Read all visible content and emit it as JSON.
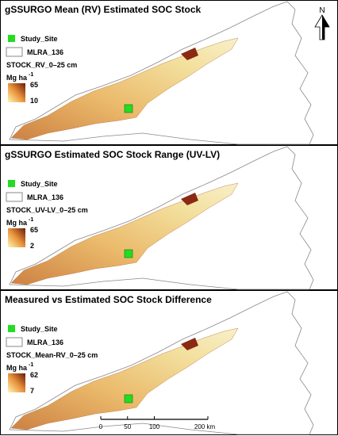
{
  "panels": [
    {
      "title": "gSSURGO Mean (RV) Estimated SOC Stock",
      "legend": {
        "site": "Study_Site",
        "boundary": "MLRA_136",
        "layer": "STOCK_RV_0–25 cm",
        "unit": "Mg ha",
        "unit_exp": "-1",
        "max": 65,
        "min": 10
      }
    },
    {
      "title": "gSSURGO Estimated SOC Stock Range (UV-LV)",
      "legend": {
        "site": "Study_Site",
        "boundary": "MLRA_136",
        "layer": "STOCK_UV-LV_0–25 cm",
        "unit": "Mg ha",
        "unit_exp": "-1",
        "max": 65,
        "min": 2
      }
    },
    {
      "title": "Measured vs Estimated SOC Stock Difference",
      "legend": {
        "site": "Study_Site",
        "boundary": "MLRA_136",
        "layer": "STOCK_Mean-RV_0–25 cm",
        "unit": "Mg ha",
        "unit_exp": "-1",
        "max": 62,
        "min": 7
      }
    }
  ],
  "north": "N",
  "scale_bar": {
    "ticks": [
      0,
      50,
      100,
      {
        "value": 200,
        "label": "200 km"
      }
    ]
  }
}
